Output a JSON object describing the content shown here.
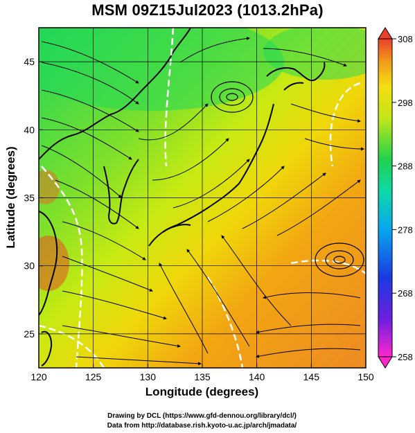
{
  "title": "MSM 09Z15Jul2023 (1013.2hPa)",
  "map": {
    "type": "weather-map",
    "xlabel": "Longitude (degrees)",
    "ylabel": "Latitude  (degrees)",
    "x_ticks": [
      "120",
      "125",
      "130",
      "135",
      "140",
      "145",
      "150"
    ],
    "y_ticks": [
      "25",
      "30",
      "35",
      "40",
      "45"
    ],
    "x_range": [
      120,
      150
    ],
    "y_range": [
      22.5,
      47.5
    ],
    "grid": true,
    "fields": [
      "temperature-shading",
      "streamlines",
      "coastlines",
      "white-contours"
    ]
  },
  "colorbar": {
    "labels": [
      "308",
      "298",
      "288",
      "278",
      "268",
      "258"
    ],
    "range": [
      258,
      308
    ]
  },
  "credits": {
    "line1": "Drawing by DCL (https://www.gfd-dennou.org/library/dcl/)",
    "line2": "Data from http://database.rish.kyoto-u.ac.jp/arch/jmadata/"
  }
}
